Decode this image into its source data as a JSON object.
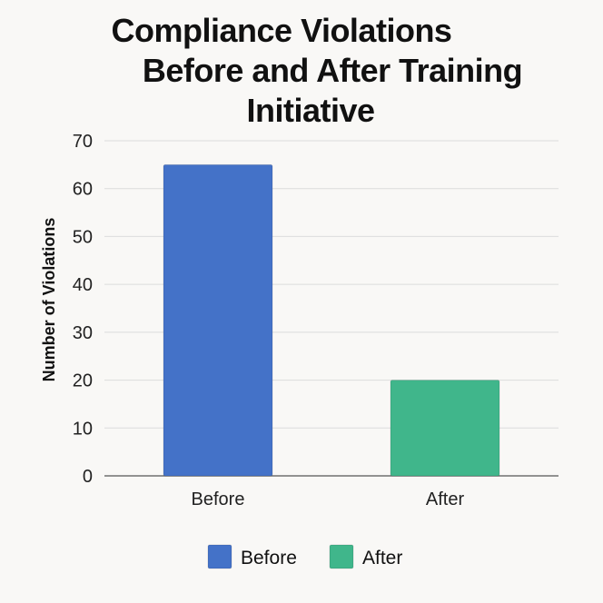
{
  "chart_data": {
    "type": "bar",
    "title_lines": [
      "Compliance Violations",
      "Before and After Training",
      "Initiative"
    ],
    "xlabel": "",
    "ylabel": "Number of Violations",
    "categories": [
      "Before",
      "After"
    ],
    "values": [
      65,
      20
    ],
    "colors": [
      "#4472c8",
      "#40b68b"
    ],
    "ylim": [
      0,
      70
    ],
    "yticks": [
      "0",
      "10",
      "20",
      "30",
      "40",
      "50",
      "60",
      "70"
    ],
    "grid": true,
    "legend": {
      "placement": "bottom-center",
      "items": [
        {
          "label": "Before",
          "color": "#4472c8"
        },
        {
          "label": "After",
          "color": "#40b68b"
        }
      ]
    }
  }
}
